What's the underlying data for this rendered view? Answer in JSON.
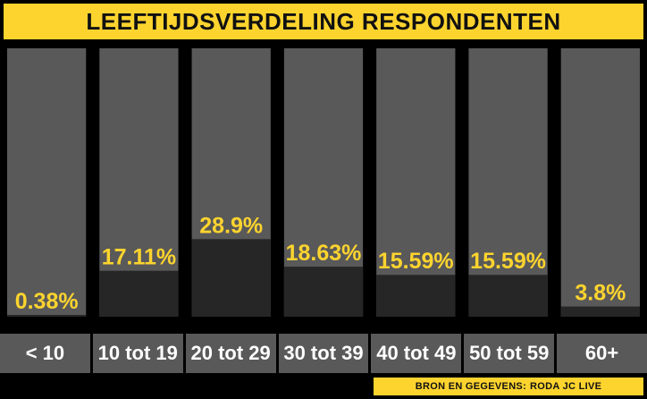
{
  "colors": {
    "background": "#000000",
    "accent": "#fdd42e",
    "bar_track": "#595959",
    "bar_fill": "#262626",
    "value_text": "#fdd42e",
    "category_text": "#ffffff"
  },
  "source": {
    "prefix": "BRON EN GEGEVENS:",
    "name": "RODA JC LIVE"
  },
  "chart_data": {
    "type": "bar",
    "title": "LEEFTIJDSVERDELING RESPONDENTEN",
    "categories": [
      "< 10",
      "10 tot 19",
      "20 tot 29",
      "30 tot 39",
      "40 tot 49",
      "50 tot 59",
      "60+"
    ],
    "values": [
      0.38,
      17.11,
      28.9,
      18.63,
      15.59,
      15.59,
      3.8
    ],
    "value_labels": [
      "0.38%",
      "17.11%",
      "28.9%",
      "18.63%",
      "15.59%",
      "15.59%",
      "3.8%"
    ],
    "unit": "%",
    "ylim": [
      0,
      100
    ],
    "grid": false,
    "legend": "none"
  }
}
